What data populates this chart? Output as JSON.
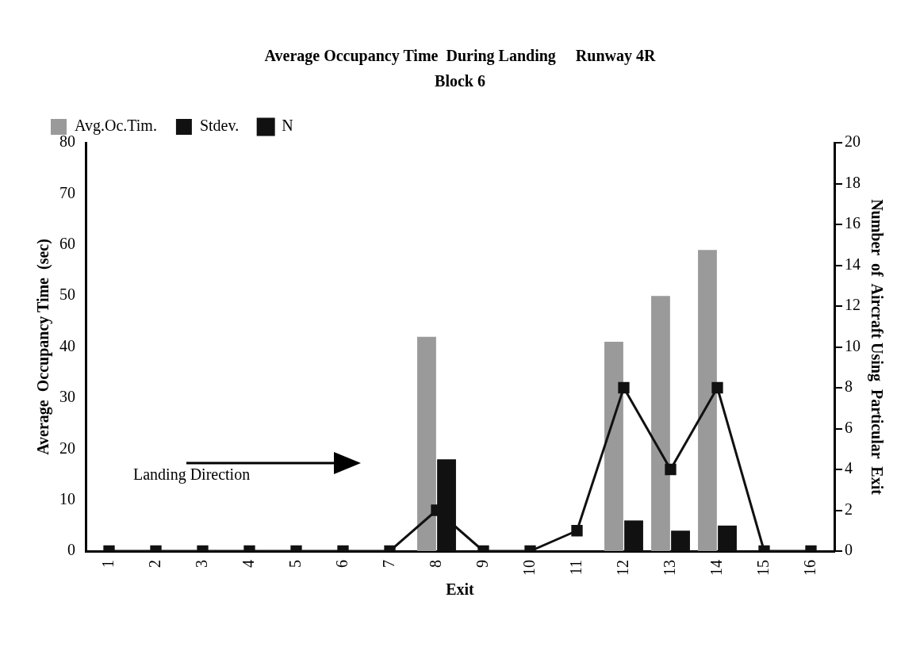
{
  "chart_data": {
    "type": "bar",
    "title": "Average Occupancy Time  During Landing     Runway 4R",
    "subtitle": "Block 6",
    "xlabel": "Exit",
    "ylabel": "Average  Occupancy Time  (sec)",
    "y2label": "Number  of  Aircraft Using  Particular  Exit",
    "categories": [
      "1",
      "2",
      "3",
      "4",
      "5",
      "6",
      "7",
      "8",
      "9",
      "10",
      "11",
      "12",
      "13",
      "14",
      "15",
      "16"
    ],
    "series": [
      {
        "name": "Avg.Oc.Tim.",
        "color": "#9a9a9a",
        "values": [
          null,
          null,
          null,
          null,
          null,
          null,
          null,
          42,
          null,
          null,
          null,
          41,
          50,
          59,
          null,
          null
        ]
      },
      {
        "name": "Stdev.",
        "color": "#111111",
        "values": [
          null,
          null,
          null,
          null,
          null,
          null,
          null,
          18,
          null,
          null,
          null,
          6,
          4,
          5,
          null,
          null
        ]
      },
      {
        "name": "N",
        "type": "line",
        "axis": "y2",
        "color": "#111111",
        "values": [
          0,
          0,
          0,
          0,
          0,
          0,
          0,
          2,
          0,
          0,
          1,
          8,
          4,
          8,
          0,
          0
        ]
      }
    ],
    "ylim": [
      0,
      80
    ],
    "yticks": [
      0,
      10,
      20,
      30,
      40,
      50,
      60,
      70,
      80
    ],
    "y2lim": [
      0,
      20
    ],
    "y2ticks": [
      0,
      2,
      4,
      6,
      8,
      10,
      12,
      14,
      16,
      18,
      20
    ],
    "marker": "square",
    "line_style": "solid",
    "legend": "top left",
    "grid": false,
    "annotations": [
      "Landing Direction"
    ]
  }
}
